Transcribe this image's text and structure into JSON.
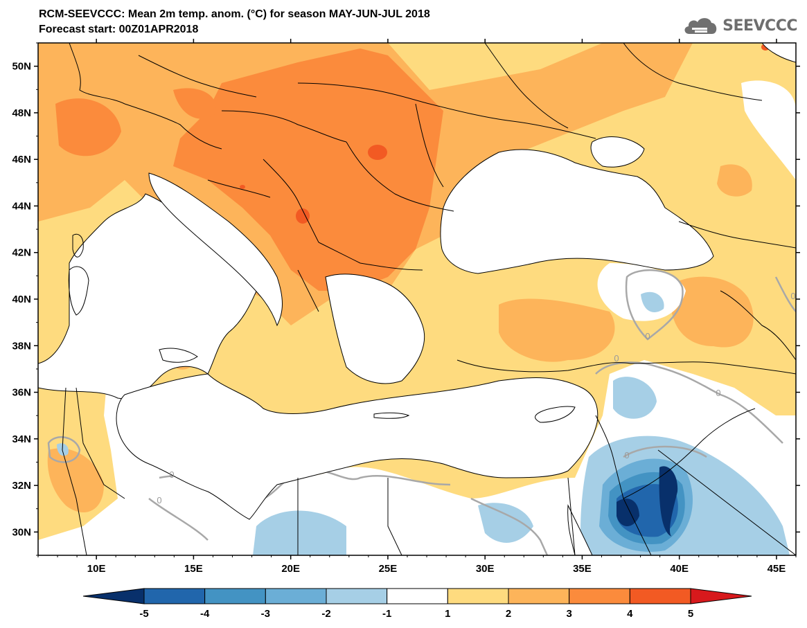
{
  "header": {
    "title": "RCM-SEEVCCC: Mean 2m temp. anom. (°C) for season MAY-JUN-JUL 2018",
    "subtitle": "Forecast start: 00Z01APR2018"
  },
  "logo": {
    "text": "SEEVCCC",
    "icon": "cloud-icon"
  },
  "map": {
    "lat_labels": [
      "50N",
      "48N",
      "46N",
      "44N",
      "42N",
      "40N",
      "38N",
      "36N",
      "34N",
      "32N",
      "30N"
    ],
    "lat_values": [
      50,
      48,
      46,
      44,
      42,
      40,
      38,
      36,
      34,
      32,
      30
    ],
    "lon_labels": [
      "10E",
      "15E",
      "20E",
      "25E",
      "30E",
      "35E",
      "40E",
      "45E"
    ],
    "lon_values": [
      10,
      15,
      20,
      25,
      30,
      35,
      40,
      45
    ],
    "extent": {
      "lon": [
        7,
        46
      ],
      "lat": [
        29,
        51
      ]
    },
    "zero_contour_labels": [
      "0",
      "0",
      "0",
      "0",
      "0",
      "0",
      "0"
    ]
  },
  "colorbar": {
    "labels": [
      "-5",
      "-4",
      "-3",
      "-2",
      "-1",
      "1",
      "2",
      "3",
      "4",
      "5"
    ],
    "colors": [
      "#08306b",
      "#2166ac",
      "#4393c3",
      "#6baed6",
      "#a6cfe6",
      "#ffffff",
      "#fedb7f",
      "#fdb45a",
      "#fb8b3c",
      "#f25a23",
      "#d7191c"
    ]
  }
}
